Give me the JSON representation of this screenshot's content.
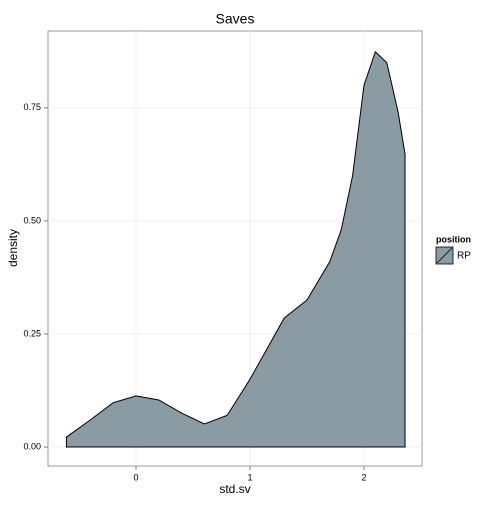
{
  "chart_data": {
    "type": "area",
    "title": "Saves",
    "x_label": "std.sv",
    "y_label": "density",
    "x": [
      -0.61,
      -0.4,
      -0.2,
      0,
      0.2,
      0.4,
      0.6,
      0.8,
      1.0,
      1.2,
      1.3,
      1.5,
      1.7,
      1.8,
      1.9,
      2.0,
      2.1,
      2.2,
      2.3,
      2.36
    ],
    "series": [
      {
        "name": "RP",
        "color": "#8a9ba3",
        "values": [
          0.022,
          0.06,
          0.098,
          0.113,
          0.104,
          0.075,
          0.051,
          0.07,
          0.15,
          0.24,
          0.285,
          0.325,
          0.41,
          0.48,
          0.6,
          0.8,
          0.874,
          0.85,
          0.74,
          0.648
        ]
      }
    ],
    "legend_title": "position",
    "xlim": [
      -0.772,
      2.509
    ],
    "xticks": [
      0,
      1,
      2
    ],
    "ylim": [
      -0.042,
      0.92
    ],
    "yticks": [
      {
        "value": 0,
        "label": "0.00"
      },
      {
        "value": 0.25,
        "label": "0.25"
      },
      {
        "value": 0.5,
        "label": "0.50"
      },
      {
        "value": 0.75,
        "label": "0.75"
      }
    ],
    "grid": true,
    "legend_position": "right"
  }
}
